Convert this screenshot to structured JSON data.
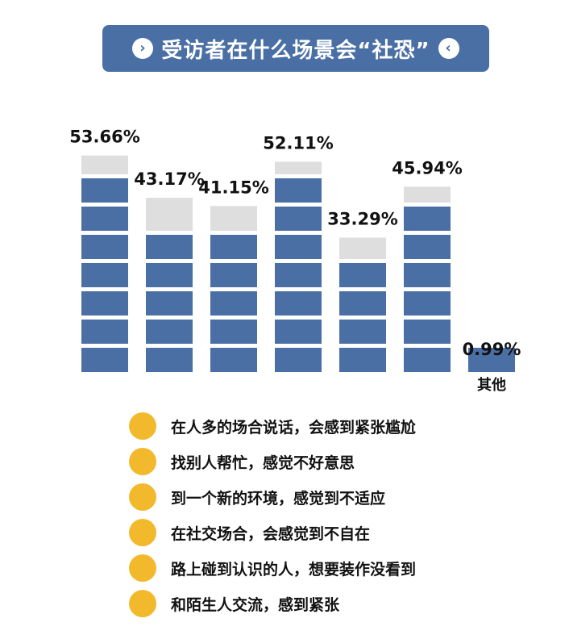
{
  "title": {
    "left_arrow": "›",
    "text": "受访者在什么场景会“社恐”",
    "right_arrow": "‹"
  },
  "chart_data": {
    "type": "bar",
    "categories": [
      "在人多的场合说话，会感到紧张尴尬",
      "找别人帮忙，感觉不好意思",
      "到一个新的环境，感觉到不适应",
      "在社交场合，会感觉到不自在",
      "路上碰到认识的人，想要装作没看到",
      "和陌生人交流，感到紧张",
      "其他"
    ],
    "values": [
      53.66,
      43.17,
      41.15,
      52.11,
      33.29,
      45.94,
      0.99
    ],
    "value_labels": [
      "53.66%",
      "43.17%",
      "41.15%",
      "52.11%",
      "33.29%",
      "45.94%",
      "0.99%"
    ],
    "inline_label": "其他",
    "ylim": [
      0,
      60
    ],
    "colors": {
      "filled": "#4a6fa5",
      "empty": "#dedede"
    }
  },
  "legend": {
    "items": [
      "在人多的场合说话，会感到紧张尴尬",
      "找别人帮忙，感觉不好意思",
      "到一个新的环境，感觉到不适应",
      "在社交场合，会感觉到不自在",
      "路上碰到认识的人，想要装作没看到",
      "和陌生人交流，感到紧张"
    ]
  }
}
